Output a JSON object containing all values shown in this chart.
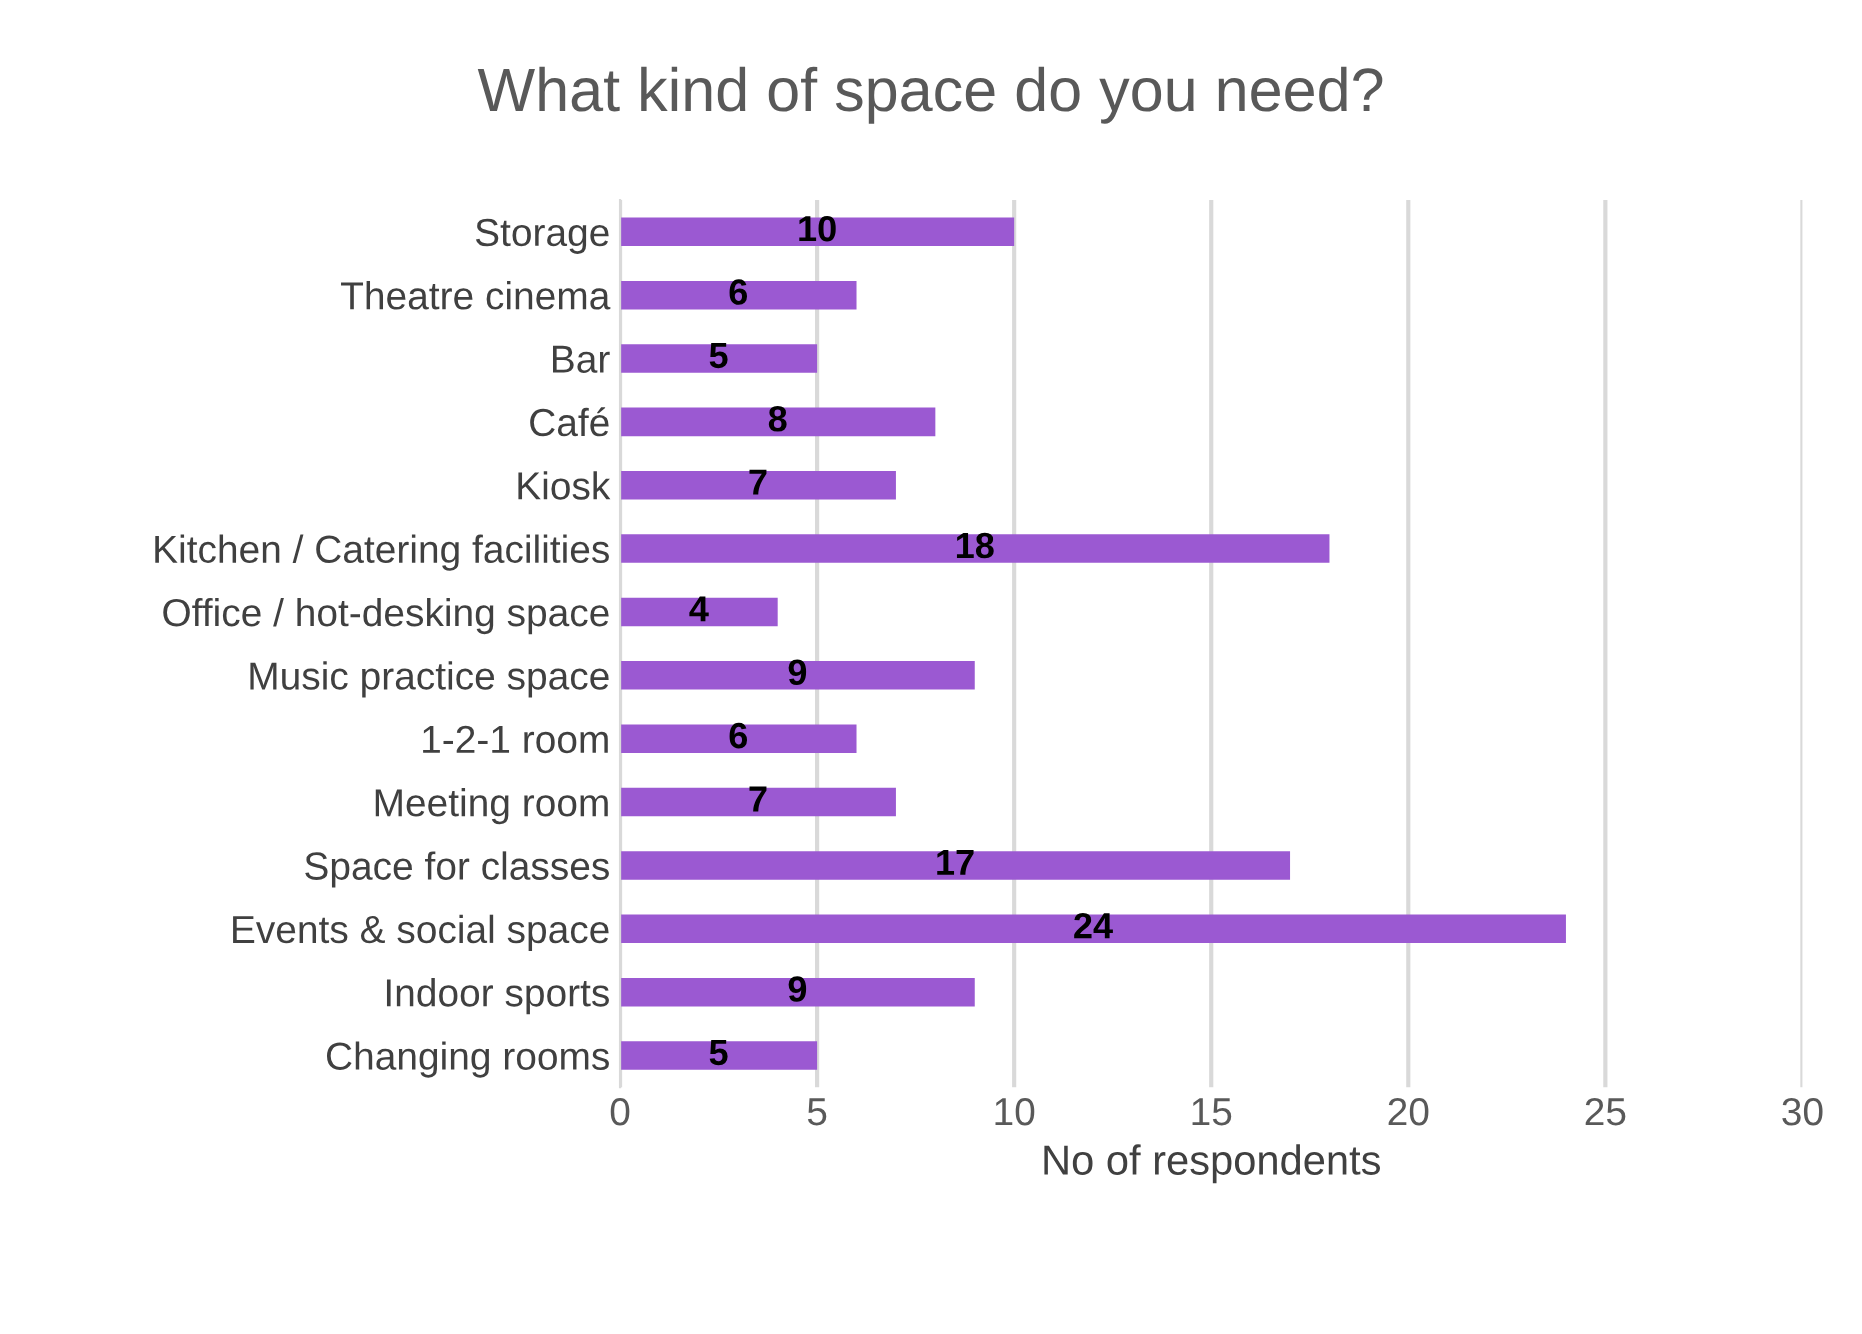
{
  "chart_data": {
    "type": "bar",
    "orientation": "horizontal",
    "title": "What kind of space do you need?",
    "xlabel": "No of respondents",
    "categories": [
      "Storage",
      "Theatre cinema",
      "Bar",
      "Café",
      "Kiosk",
      "Kitchen / Catering facilities",
      "Office / hot-desking space",
      "Music practice space",
      "1-2-1 room",
      "Meeting room",
      "Space for classes",
      "Events & social space",
      "Indoor sports",
      "Changing rooms"
    ],
    "values": [
      10,
      6,
      5,
      8,
      7,
      18,
      4,
      9,
      6,
      7,
      17,
      24,
      9,
      5
    ],
    "color": "#9b59d2",
    "xlim": [
      0,
      30
    ],
    "xticks": [
      0,
      5,
      10,
      15,
      20,
      25,
      30
    ],
    "grid": "x",
    "data_labels": true
  }
}
